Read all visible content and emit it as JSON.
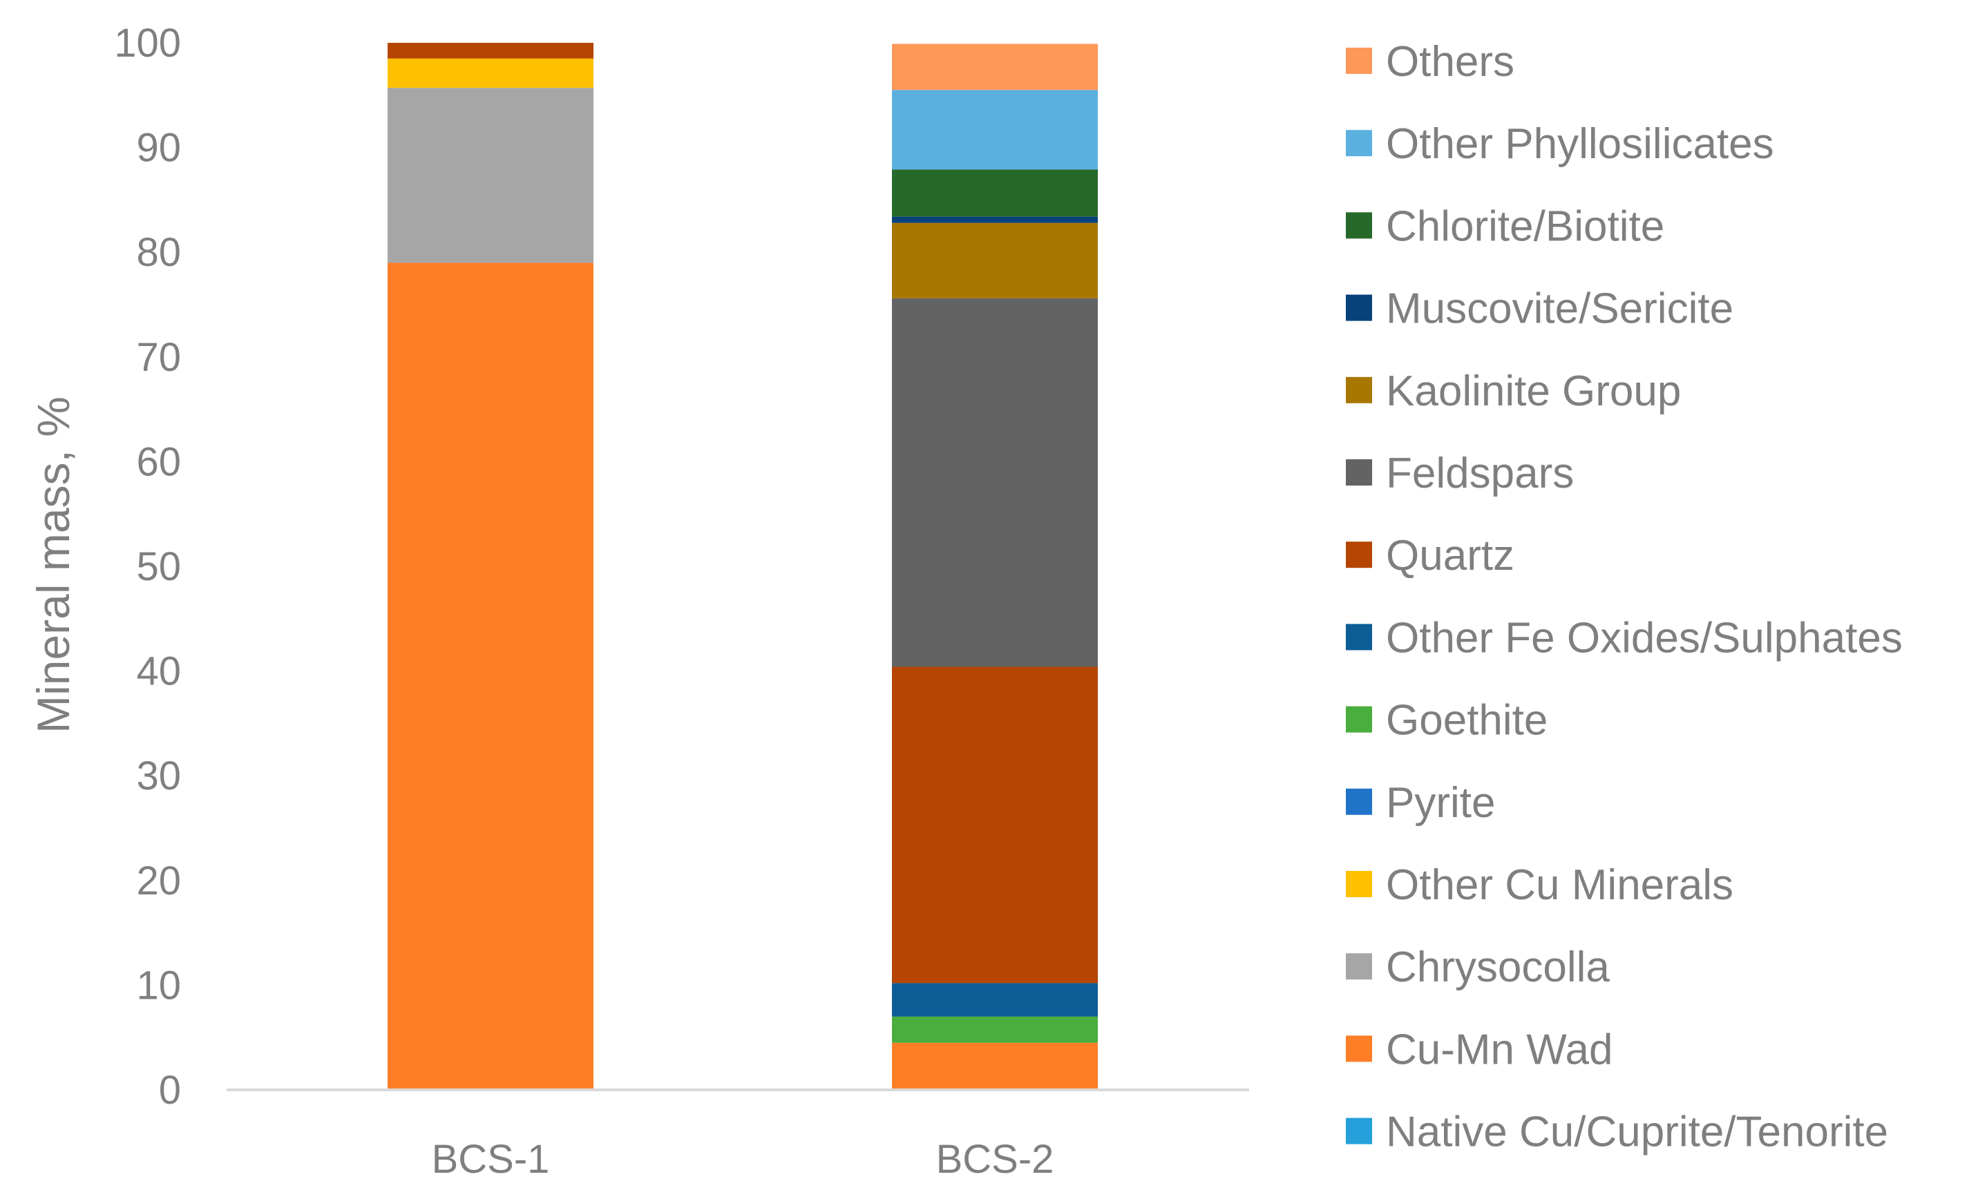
{
  "chart_data": {
    "type": "bar",
    "stacked": true,
    "title": "",
    "xlabel": "",
    "ylabel": "Mineral mass, %",
    "ylim": [
      0,
      100
    ],
    "yticks": [
      "0",
      "10",
      "20",
      "30",
      "40",
      "50",
      "60",
      "70",
      "80",
      "90",
      "100"
    ],
    "grid": false,
    "legend_position": "right",
    "categories": [
      "BCS-1",
      "BCS-2"
    ],
    "series": [
      {
        "name": "Native Cu/Cuprite/Tenorite",
        "color": "#25a0da",
        "values": [
          0,
          0
        ]
      },
      {
        "name": "Cu-Mn Wad",
        "color": "#fd7e27",
        "values": [
          79,
          4.5
        ]
      },
      {
        "name": "Chrysocolla",
        "color": "#a6a6a6",
        "values": [
          16.7,
          0
        ]
      },
      {
        "name": "Other Cu Minerals",
        "color": "#fec100",
        "values": [
          2.8,
          0
        ]
      },
      {
        "name": "Pyrite",
        "color": "#1f74c8",
        "values": [
          0,
          0
        ]
      },
      {
        "name": "Goethite",
        "color": "#4aae3e",
        "values": [
          0,
          2.5
        ]
      },
      {
        "name": "Other Fe Oxides/Sulphates",
        "color": "#0d5d96",
        "values": [
          0,
          3.2
        ]
      },
      {
        "name": "Quartz",
        "color": "#b54500",
        "values": [
          1.5,
          30.2
        ]
      },
      {
        "name": "Feldspars",
        "color": "#636363",
        "values": [
          0,
          35.2
        ]
      },
      {
        "name": "Kaolinite Group",
        "color": "#a87700",
        "values": [
          0,
          7.2
        ]
      },
      {
        "name": "Muscovite/Sericite",
        "color": "#08427a",
        "values": [
          0,
          0.6
        ]
      },
      {
        "name": "Chlorite/Biotite",
        "color": "#27692b",
        "values": [
          0,
          4.5
        ]
      },
      {
        "name": "Other Phyllosilicates",
        "color": "#5bb0e0",
        "values": [
          0,
          7.6
        ]
      },
      {
        "name": "Others",
        "color": "#fe9859",
        "values": [
          0,
          4.4
        ]
      }
    ],
    "colors": {
      "axis": "#d9d9d9",
      "text": "#7f7f7f"
    }
  }
}
